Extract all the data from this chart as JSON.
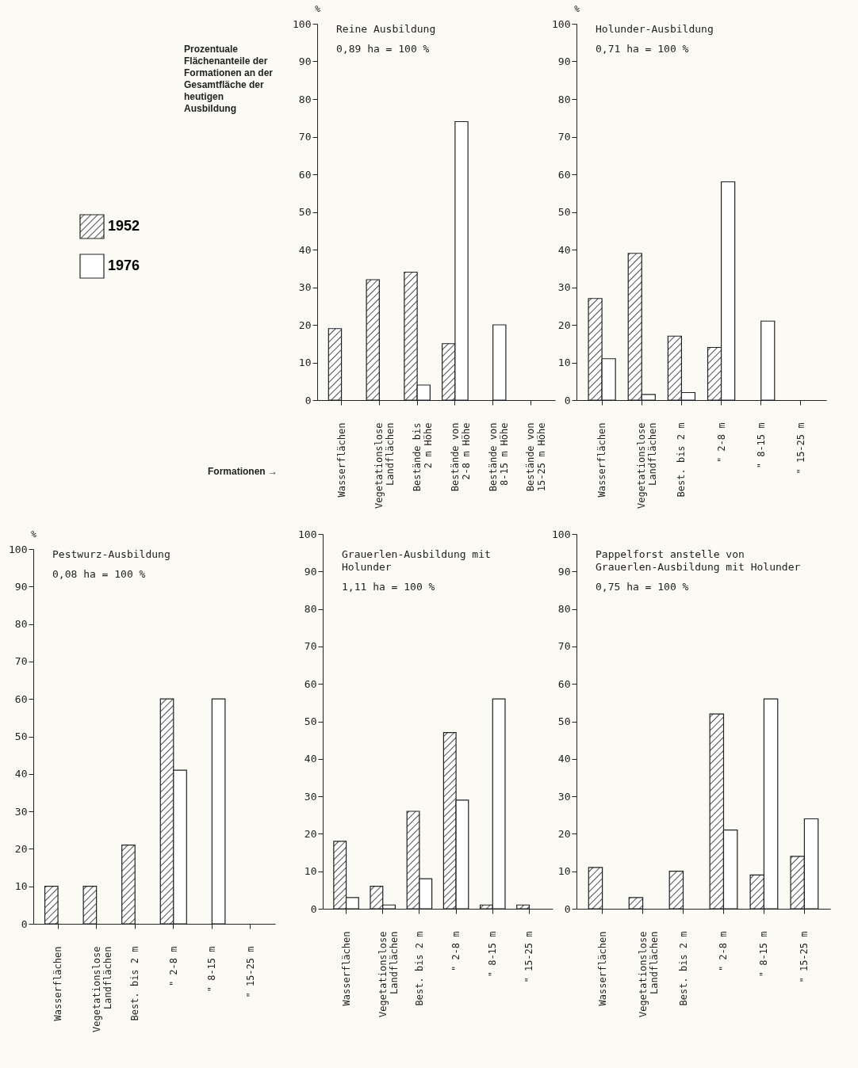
{
  "chart_data": [
    {
      "type": "bar",
      "title": "Reine Ausbildung",
      "subtitle": "0,89 ha = 100 %",
      "ylabel": "%",
      "legend": "left",
      "annotations": [
        "Prozentuale Flächenanteile der Formationen an der Gesamtfläche der heutigen Ausbildung",
        "Formationen →"
      ],
      "categories": [
        "Wasserflächen",
        "Vegetationslose\nLandflächen",
        "Bestände bis\n2 m Höhe",
        "Bestände von\n2-8 m Höhe",
        "Bestände von\n8-15 m Höhe",
        "Bestände von\n15-25 m Höhe"
      ],
      "series": [
        {
          "name": "1952",
          "color": "#222222",
          "values": [
            19,
            32,
            34,
            15,
            null,
            null
          ]
        },
        {
          "name": "1976",
          "color": "#ffffff",
          "values": [
            null,
            null,
            4,
            74,
            20,
            null
          ]
        }
      ],
      "ylim": [
        0,
        100
      ],
      "yticks": [
        0,
        10,
        20,
        30,
        40,
        50,
        60,
        70,
        80,
        90,
        100
      ]
    },
    {
      "type": "bar",
      "title": "Holunder-Ausbildung",
      "subtitle": "0,71 ha = 100 %",
      "ylabel": "%",
      "categories": [
        "Wasserflächen",
        "Vegetationslose\nLandflächen",
        "Best. bis 2 m",
        "\" 2-8 m",
        "\" 8-15 m",
        "\" 15-25 m"
      ],
      "series": [
        {
          "color": "#222222",
          "values": [
            27,
            39,
            17,
            14,
            null,
            null
          ]
        },
        {
          "color": "#ffffff",
          "values": [
            11,
            1.5,
            2,
            58,
            21,
            null
          ]
        }
      ],
      "ylim": [
        0,
        100
      ],
      "yticks": [
        0,
        10,
        20,
        30,
        40,
        50,
        60,
        70,
        80,
        90,
        100
      ]
    },
    {
      "type": "bar",
      "title": "Pestwurz-Ausbildung",
      "subtitle": "0,08 ha = 100 %",
      "ylabel": "%",
      "categories": [
        "Wasserflächen",
        "Vegetationslose\nLandflächen",
        "Best. bis 2 m",
        "\" 2-8 m",
        "\" 8-15 m",
        "\" 15-25 m"
      ],
      "series": [
        {
          "color": "#222222",
          "values": [
            10,
            10,
            21,
            60,
            null,
            null
          ]
        },
        {
          "color": "#ffffff",
          "values": [
            null,
            null,
            null,
            41,
            60,
            null
          ]
        }
      ],
      "ylim": [
        0,
        100
      ],
      "yticks": [
        0,
        10,
        20,
        30,
        40,
        50,
        60,
        70,
        80,
        90,
        100
      ]
    },
    {
      "type": "bar",
      "title": "Grauerlen-Ausbildung mit\nHolunder",
      "subtitle": "1,11 ha = 100 %",
      "categories": [
        "Wasserflächen",
        "Vegetationslose\nLandflächen",
        "Best. bis 2 m",
        "\" 2-8 m",
        "\" 8-15 m",
        "\" 15-25 m"
      ],
      "series": [
        {
          "color": "#222222",
          "values": [
            18,
            6,
            26,
            47,
            1,
            1
          ]
        },
        {
          "color": "#ffffff",
          "values": [
            3,
            1,
            8,
            29,
            56,
            null
          ]
        }
      ],
      "ylim": [
        0,
        100
      ],
      "yticks": [
        0,
        10,
        20,
        30,
        40,
        50,
        60,
        70,
        80,
        90,
        100
      ]
    },
    {
      "type": "bar",
      "title": "Pappelforst anstelle von\nGrauerlen-Ausbildung mit Holunder",
      "subtitle": "0,75 ha = 100 %",
      "categories": [
        "Wasserflächen",
        "Vegetationslose\nLandflächen",
        "Best. bis 2 m",
        "\" 2-8 m",
        "\" 8-15 m",
        "\" 15-25 m"
      ],
      "series": [
        {
          "color": "#222222",
          "values": [
            11,
            3,
            10,
            52,
            9,
            14
          ]
        },
        {
          "color": "#ffffff",
          "values": [
            null,
            null,
            null,
            21,
            56,
            24
          ]
        }
      ],
      "ylim": [
        0,
        100
      ],
      "yticks": [
        0,
        10,
        20,
        30,
        40,
        50,
        60,
        70,
        80,
        90,
        100
      ]
    }
  ]
}
